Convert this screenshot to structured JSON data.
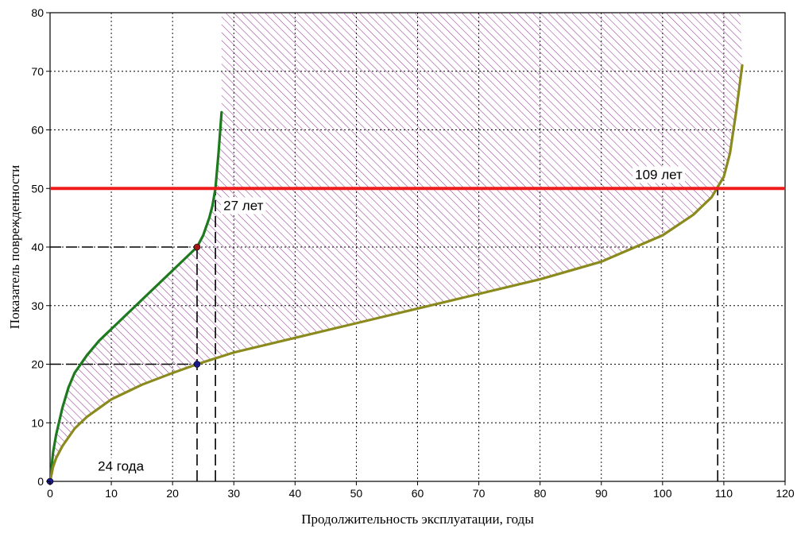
{
  "chart_data": {
    "type": "line",
    "title": "",
    "xlabel": "Продолжительность эксплуатации, годы",
    "ylabel": "Показатель поврежденности",
    "xlim": [
      0,
      120
    ],
    "ylim": [
      0,
      80
    ],
    "x_ticks": [
      0,
      10,
      20,
      30,
      40,
      50,
      60,
      70,
      80,
      90,
      100,
      110,
      120
    ],
    "y_ticks": [
      0,
      10,
      20,
      30,
      40,
      50,
      60,
      70,
      80
    ],
    "x_tick_labels": [
      "0",
      "10",
      "20",
      "30",
      "40",
      "50",
      "60",
      "70",
      "80",
      "90",
      "100",
      "110",
      "120"
    ],
    "y_tick_labels": [
      "0",
      "10",
      "20",
      "30",
      "40",
      "50",
      "60",
      "70",
      "80"
    ],
    "grid": true,
    "legend": "none",
    "series": [
      {
        "color": "#1e7a1e",
        "x": [
          0,
          0.5,
          1,
          2,
          3,
          4,
          6,
          8,
          10,
          12,
          14,
          16,
          18,
          20,
          22,
          24,
          25,
          26,
          26.5,
          27,
          27.5,
          28
        ],
        "y": [
          0,
          5,
          8,
          12.5,
          16,
          18.5,
          21.5,
          24,
          26,
          28,
          30,
          32,
          34,
          36,
          38,
          40,
          42,
          45,
          47,
          50,
          56,
          63
        ]
      },
      {
        "color": "#8a8a1e",
        "x": [
          0,
          0.5,
          1,
          2,
          4,
          6,
          8,
          10,
          15,
          20,
          24,
          30,
          40,
          50,
          60,
          70,
          80,
          90,
          100,
          105,
          108,
          110,
          111,
          112,
          113
        ],
        "y": [
          0,
          2.5,
          4,
          6,
          9,
          11,
          12.5,
          14,
          16.5,
          18.5,
          20,
          22,
          24.5,
          27,
          29.5,
          32,
          34.5,
          37.5,
          42,
          45.5,
          48.5,
          52,
          56,
          63,
          71
        ]
      },
      {
        "color": "#ee1c1c",
        "x": [
          0,
          120
        ],
        "y": [
          50,
          50
        ]
      }
    ],
    "markers": [
      {
        "x": 0,
        "y": 0,
        "color": "#1a1a8c"
      },
      {
        "x": 24,
        "y": 20,
        "color": "#1a1a8c"
      },
      {
        "x": 24,
        "y": 40,
        "color": "#a01818"
      }
    ],
    "reference_lines": [
      {
        "points": [
          [
            0,
            40
          ],
          [
            24,
            40
          ]
        ]
      },
      {
        "points": [
          [
            0,
            20
          ],
          [
            24,
            20
          ]
        ]
      },
      {
        "points": [
          [
            24,
            0
          ],
          [
            24,
            40
          ]
        ]
      },
      {
        "points": [
          [
            27,
            0
          ],
          [
            27,
            50
          ]
        ]
      },
      {
        "points": [
          [
            109,
            0
          ],
          [
            109,
            50
          ]
        ]
      }
    ],
    "hatched_region": {
      "color": "#9a3a9a"
    },
    "annotations": [
      {
        "text": "24 года",
        "x": 7.8,
        "y": 1.8
      },
      {
        "text": "27 лет",
        "x": 28.3,
        "y": 46.3
      },
      {
        "text": "109 лет",
        "x": 95.5,
        "y": 51.6
      }
    ]
  }
}
